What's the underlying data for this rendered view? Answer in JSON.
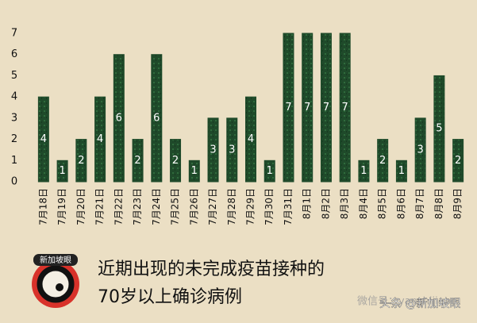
{
  "chart_data": {
    "type": "bar",
    "title": [
      "近期出现的未完成疫苗接种的",
      "70岁以上确诊病例"
    ],
    "logo_text": "新加坡眼",
    "watermark": "微信号：yanshijiapo",
    "credit": "头条 @新加坡眼",
    "categories": [
      "7月18日",
      "7月19日",
      "7月20日",
      "7月21日",
      "7月22日",
      "7月23日",
      "7月24日",
      "7月25日",
      "7月26日",
      "7月27日",
      "7月28日",
      "7月29日",
      "7月30日",
      "7月31日",
      "8月1日",
      "8月2日",
      "8月3日",
      "8月4日",
      "8月5日",
      "8月6日",
      "8月7日",
      "8月8日",
      "8月9日"
    ],
    "values": [
      4,
      1,
      2,
      4,
      6,
      2,
      6,
      2,
      1,
      3,
      3,
      4,
      1,
      7,
      7,
      7,
      7,
      1,
      2,
      1,
      3,
      5,
      2
    ],
    "color": "#1f4a2a",
    "ylim": [
      0,
      7
    ],
    "yticks": [
      0,
      1,
      2,
      3,
      4,
      5,
      6,
      7
    ],
    "grid": false
  }
}
